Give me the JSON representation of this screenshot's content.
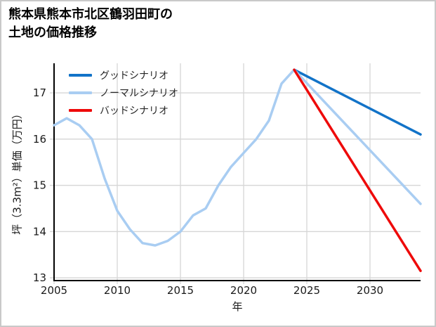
{
  "chart_data": {
    "type": "line",
    "title": "熊本県熊本市北区鶴羽田町の\n土地の価格推移",
    "xlabel": "年",
    "ylabel": "坪（3.3m²）単価（万円）",
    "x_range": [
      2005,
      2034
    ],
    "y_range": [
      12.94,
      17.64
    ],
    "x_tick_values": [
      2005,
      2010,
      2015,
      2020,
      2025,
      2030
    ],
    "y_ticks": [
      13,
      14,
      15,
      16,
      17
    ],
    "grid": true,
    "grid_color": "#d6d6d6",
    "axis_color": "#000000",
    "legend_position": "upper-left",
    "series": [
      {
        "name": "グッドシナリオ",
        "color": "#1273c8",
        "x": [
          2024,
          2034
        ],
        "y": [
          17.5,
          16.1
        ]
      },
      {
        "name": "ノーマルシナリオ",
        "color": "#a9cdf2",
        "x": [
          2005,
          2006,
          2007,
          2008,
          2009,
          2010,
          2011,
          2012,
          2013,
          2014,
          2015,
          2016,
          2017,
          2018,
          2019,
          2020,
          2021,
          2022,
          2023,
          2024,
          2034
        ],
        "y": [
          16.3,
          16.45,
          16.3,
          16.0,
          15.15,
          14.45,
          14.05,
          13.75,
          13.7,
          13.8,
          14.0,
          14.35,
          14.5,
          15.0,
          15.4,
          15.7,
          16.0,
          16.4,
          17.2,
          17.5,
          14.6
        ]
      },
      {
        "name": "バッドシナリオ",
        "color": "#ee0a0a",
        "x": [
          2024,
          2034
        ],
        "y": [
          17.5,
          13.15
        ]
      }
    ]
  }
}
